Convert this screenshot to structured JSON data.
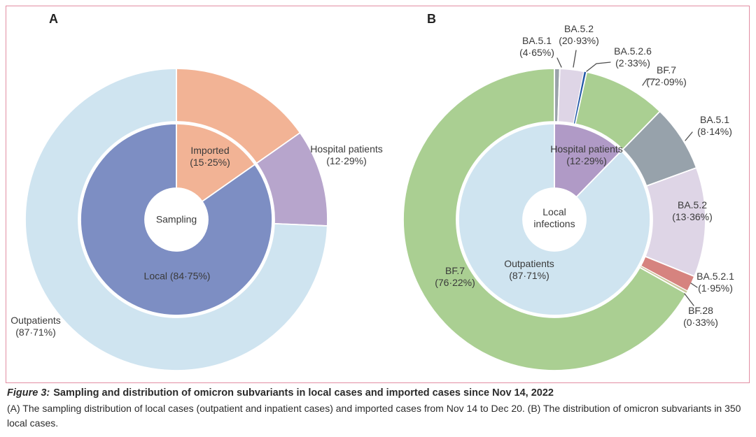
{
  "panel_letters": {
    "a": "A",
    "b": "B"
  },
  "caption": {
    "figure_label": "Figure 3:",
    "title": "Sampling and distribution of omicron subvariants in local cases and imported cases since Nov 14, 2022",
    "description": "(A) The sampling distribution of local cases (outpatient and inpatient cases) and imported cases from Nov 14 to Dec 20. (B) The distribution of omicron subvariants in 350 local cases."
  },
  "colors": {
    "imported_salmon": "#f2b395",
    "local_blue": "#7d8ec3",
    "outpatients_light_blue": "#cfe4f0",
    "hospital_lilac": "#b7a5cc",
    "hospital_purple": "#b09ac6",
    "bf7_green": "#aacf92",
    "ba51_hospital_gray": "#9aa3aa",
    "ba51_outpatient_gray": "#97a2ab",
    "ba52_thistle": "#ded5e6",
    "ba526_blue": "#2157a6",
    "ba521_red": "#d6837f",
    "bf28_tan": "#ccc79d",
    "frame_pink": "#e28da2",
    "text": "#3a3a3a"
  },
  "chart_data": [
    {
      "type": "pie",
      "subtype": "nested_donut",
      "panel": "A",
      "center_label_text": "Sampling",
      "rings": {
        "inner": [
          {
            "name": "Imported",
            "value_pct": 15.25,
            "span_pct": 15.25,
            "color": "#f2b395"
          },
          {
            "name": "Local",
            "value_pct": 84.75,
            "span_pct": 84.75,
            "color": "#7d8ec3"
          }
        ],
        "outer": [
          {
            "name": "Imported",
            "value_pct": 15.25,
            "span_pct": 15.25,
            "color": "#f2b395"
          },
          {
            "name": "Hospital patients",
            "value_pct": 12.29,
            "span_pct": 10.416,
            "color": "#b7a5cc"
          },
          {
            "name": "Outpatients",
            "value_pct": 87.71,
            "span_pct": 74.334,
            "color": "#cfe4f0"
          }
        ]
      },
      "labels": {
        "center": [
          "Sampling"
        ],
        "imported": [
          "Imported",
          "(15·25%)"
        ],
        "local": [
          "Local (84·75%)"
        ],
        "hospital": [
          "Hospital patients",
          "(12·29%)"
        ],
        "outpatients": [
          "Outpatients",
          "(87·71%)"
        ]
      }
    },
    {
      "type": "pie",
      "subtype": "nested_donut",
      "panel": "B",
      "center_label_text": "Local infections",
      "rings": {
        "inner": [
          {
            "name": "Hospital patients",
            "value_pct": 12.29,
            "span_pct": 12.29,
            "color": "#b09ac6"
          },
          {
            "name": "Outpatients",
            "value_pct": 87.71,
            "span_pct": 87.71,
            "color": "#cfe4f0"
          }
        ],
        "outer": [
          {
            "name": "BA.5.1 (hospital patients)",
            "value_pct": 4.65,
            "span_pct": 0.5715,
            "color": "#9aa3aa"
          },
          {
            "name": "BA.5.2 (hospital patients)",
            "value_pct": 20.93,
            "span_pct": 2.5723,
            "color": "#ded5e6"
          },
          {
            "name": "BA.5.2.6 (hospital patients)",
            "value_pct": 2.33,
            "span_pct": 0.2864,
            "color": "#2157a6"
          },
          {
            "name": "BF.7 (hospital patients)",
            "value_pct": 72.09,
            "span_pct": 8.8599,
            "color": "#aacf92"
          },
          {
            "name": "BA.5.1 (outpatients)",
            "value_pct": 8.14,
            "span_pct": 7.1396,
            "color": "#97a2ab"
          },
          {
            "name": "BA.5.2 (outpatients)",
            "value_pct": 13.36,
            "span_pct": 11.7181,
            "color": "#ded5e6"
          },
          {
            "name": "BA.5.2.1 (outpatients)",
            "value_pct": 1.95,
            "span_pct": 1.7103,
            "color": "#d6837f"
          },
          {
            "name": "BF.28 (outpatients)",
            "value_pct": 0.33,
            "span_pct": 0.2894,
            "color": "#ccc79d"
          },
          {
            "name": "BF.7 (outpatients)",
            "value_pct": 76.22,
            "span_pct": 66.8526,
            "color": "#aacf92"
          }
        ]
      },
      "labels": {
        "center": [
          "Local",
          "infections"
        ],
        "hospital": [
          "Hospital patients",
          "(12·29%)"
        ],
        "outpatients": [
          "Outpatients",
          "(87·71%)"
        ],
        "bf7_outpatients": [
          "BF.7",
          "(76·22%)"
        ],
        "ba51_hospital": [
          "BA.5.1",
          "(4·65%)"
        ],
        "ba52_hospital": [
          "BA.5.2",
          "(20·93%)"
        ],
        "ba526_hospital": [
          "BA.5.2.6",
          "(2·33%)"
        ],
        "bf7_hospital": [
          "BF.7",
          "(72·09%)"
        ],
        "ba51_outpatients": [
          "BA.5.1",
          "(8·14%)"
        ],
        "ba52_outpatients": [
          "BA.5.2",
          "(13·36%)"
        ],
        "ba521_outpatients": [
          "BA.5.2.1",
          "(1·95%)"
        ],
        "bf28_outpatients": [
          "BF.28",
          "(0·33%)"
        ]
      }
    }
  ]
}
